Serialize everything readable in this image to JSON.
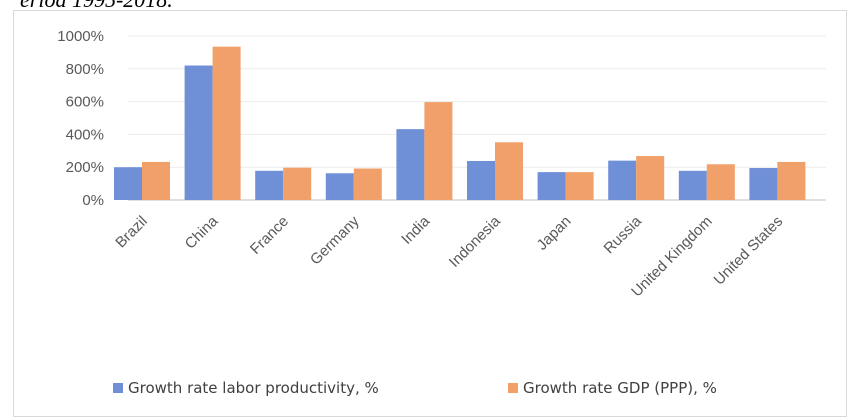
{
  "caption": "eriod 1995-2018.",
  "chart_data": {
    "type": "bar",
    "title": "",
    "xlabel": "",
    "ylabel": "",
    "ylim": [
      0,
      1000
    ],
    "y_ticks": [
      0,
      200,
      400,
      600,
      800,
      1000
    ],
    "y_tick_labels": [
      "0%",
      "200%",
      "400%",
      "600%",
      "800%",
      "1000%"
    ],
    "grid": true,
    "legend_position": "bottom",
    "categories": [
      "Brazil",
      "China",
      "France",
      "Germany",
      "India",
      "Indonesia",
      "Japan",
      "Russia",
      "United Kingdom",
      "United States"
    ],
    "series": [
      {
        "name": "Growth rate labor productivity, %",
        "color": "#6f8fd6",
        "values": [
          200,
          820,
          178,
          163,
          432,
          238,
          170,
          240,
          178,
          195
        ]
      },
      {
        "name": "Growth rate GDP (PPP), %",
        "color": "#f2a06a",
        "values": [
          232,
          935,
          197,
          192,
          597,
          352,
          170,
          268,
          218,
          232
        ]
      }
    ]
  }
}
